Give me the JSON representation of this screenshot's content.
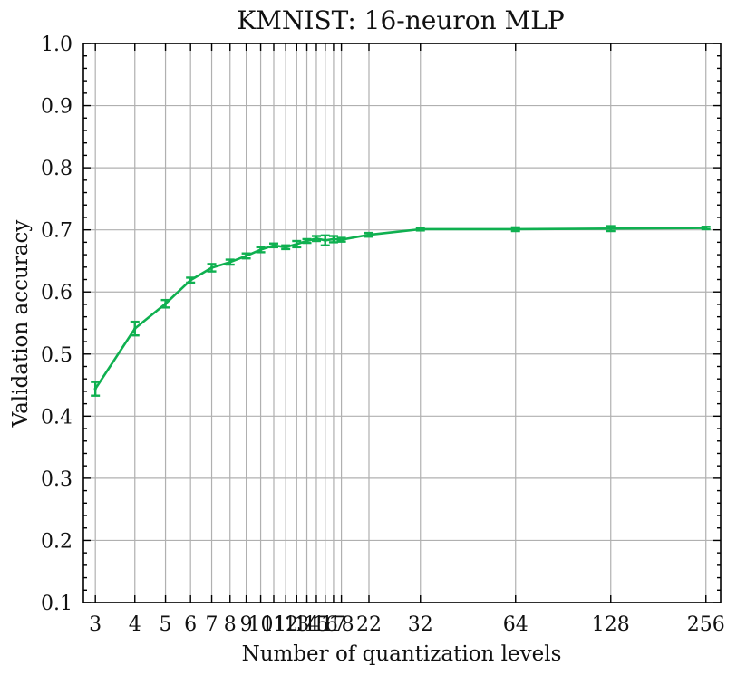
{
  "chart_data": {
    "type": "line",
    "title": "KMNIST: 16-neuron MLP",
    "xlabel": "Number of quantization levels",
    "ylabel": "Validation accuracy",
    "xscale": "log2",
    "xlim": [
      2.75,
      285
    ],
    "ylim": [
      0.1,
      1.0
    ],
    "grid": true,
    "x_ticks": [
      3,
      4,
      5,
      6,
      7,
      8,
      9,
      10,
      11,
      12,
      13,
      14,
      15,
      16,
      17,
      18,
      22,
      32,
      64,
      128,
      256
    ],
    "x_tick_labels": [
      "3",
      "4",
      "5",
      "6",
      "7",
      "8",
      "9",
      "10",
      "11",
      "12",
      "13",
      "14",
      "15",
      "16",
      "17",
      "18",
      "22",
      "32",
      "64",
      "128",
      "256"
    ],
    "y_ticks": [
      0.1,
      0.2,
      0.3,
      0.4,
      0.5,
      0.6,
      0.7,
      0.8,
      0.9,
      1.0
    ],
    "y_tick_labels": [
      "0.1",
      "0.2",
      "0.3",
      "0.4",
      "0.5",
      "0.6",
      "0.7",
      "0.8",
      "0.9",
      "1.0"
    ],
    "series": [
      {
        "name": "16-neuron MLP",
        "color": "#0fb050",
        "x": [
          3,
          4,
          5,
          6,
          7,
          8,
          9,
          10,
          11,
          12,
          13,
          14,
          15,
          16,
          17,
          18,
          22,
          32,
          64,
          128,
          256
        ],
        "y": [
          0.444,
          0.541,
          0.581,
          0.619,
          0.639,
          0.648,
          0.658,
          0.668,
          0.675,
          0.672,
          0.677,
          0.682,
          0.686,
          0.683,
          0.685,
          0.684,
          0.692,
          0.701,
          0.701,
          0.702,
          0.703
        ],
        "err": [
          0.011,
          0.011,
          0.006,
          0.004,
          0.006,
          0.004,
          0.004,
          0.004,
          0.003,
          0.003,
          0.005,
          0.003,
          0.004,
          0.008,
          0.005,
          0.003,
          0.003,
          0.002,
          0.003,
          0.004,
          0.002
        ]
      }
    ]
  }
}
